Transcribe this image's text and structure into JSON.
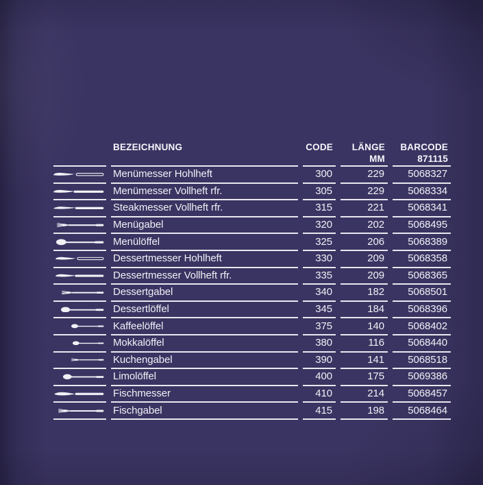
{
  "colors": {
    "background": "#3a3462",
    "text": "#f1f0f6",
    "rule": "#f3f2f7"
  },
  "table": {
    "headers": {
      "bezeichnung": "BEZEICHNUNG",
      "code": "CODE",
      "laenge_line1": "LÄNGE",
      "laenge_line2": "MM",
      "barcode_line1": "BARCODE",
      "barcode_line2": "871115"
    },
    "rows": [
      {
        "icon": "knife-hollow",
        "bezeichnung": "Menümesser Hohlheft",
        "code": "300",
        "laenge": "229",
        "barcode": "5068327"
      },
      {
        "icon": "knife-solid",
        "bezeichnung": "Menümesser Vollheft rfr.",
        "code": "305",
        "laenge": "229",
        "barcode": "5068334"
      },
      {
        "icon": "steak-knife",
        "bezeichnung": "Steakmesser Vollheft rfr.",
        "code": "315",
        "laenge": "221",
        "barcode": "5068341"
      },
      {
        "icon": "fork",
        "bezeichnung": "Menügabel",
        "code": "320",
        "laenge": "202",
        "barcode": "5068495"
      },
      {
        "icon": "spoon",
        "bezeichnung": "Menülöffel",
        "code": "325",
        "laenge": "206",
        "barcode": "5068389"
      },
      {
        "icon": "knife-hollow",
        "bezeichnung": "Dessertmesser Hohlheft",
        "code": "330",
        "laenge": "209",
        "barcode": "5068358"
      },
      {
        "icon": "knife-solid",
        "bezeichnung": "Dessertmesser Vollheft rfr.",
        "code": "335",
        "laenge": "209",
        "barcode": "5068365"
      },
      {
        "icon": "fork",
        "bezeichnung": "Dessertgabel",
        "code": "340",
        "laenge": "182",
        "barcode": "5068501"
      },
      {
        "icon": "spoon",
        "bezeichnung": "Dessertlöffel",
        "code": "345",
        "laenge": "184",
        "barcode": "5068396"
      },
      {
        "icon": "spoon",
        "bezeichnung": "Kaffeelöffel",
        "code": "375",
        "laenge": "140",
        "barcode": "5068402"
      },
      {
        "icon": "spoon",
        "bezeichnung": "Mokkalöffel",
        "code": "380",
        "laenge": "116",
        "barcode": "5068440"
      },
      {
        "icon": "fork",
        "bezeichnung": "Kuchengabel",
        "code": "390",
        "laenge": "141",
        "barcode": "5068518"
      },
      {
        "icon": "spoon",
        "bezeichnung": "Limolöffel",
        "code": "400",
        "laenge": "175",
        "barcode": "5069386"
      },
      {
        "icon": "fish-knife",
        "bezeichnung": "Fischmesser",
        "code": "410",
        "laenge": "214",
        "barcode": "5068457"
      },
      {
        "icon": "fork",
        "bezeichnung": "Fischgabel",
        "code": "415",
        "laenge": "198",
        "barcode": "5068464"
      }
    ]
  }
}
